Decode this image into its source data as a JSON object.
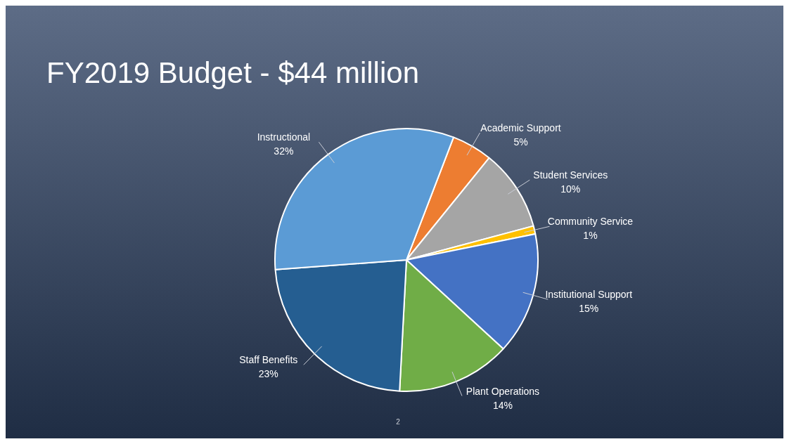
{
  "chart_data": {
    "type": "pie",
    "title": "FY2019 Budget - $44 million",
    "categories": [
      "Academic Support",
      "Student Services",
      "Community Service",
      "Institutional Support",
      "Plant Operations",
      "Staff Benefits",
      "Instructional"
    ],
    "values": [
      5,
      10,
      1,
      15,
      14,
      23,
      32
    ],
    "colors": [
      "#ed7d31",
      "#a5a5a5",
      "#ffc000",
      "#4472c4",
      "#70ad47",
      "#255e91",
      "#5b9bd5"
    ],
    "value_labels": [
      "5%",
      "10%",
      "1%",
      "15%",
      "14%",
      "23%",
      "32%"
    ],
    "legend": false,
    "annotations": [
      "2"
    ]
  }
}
